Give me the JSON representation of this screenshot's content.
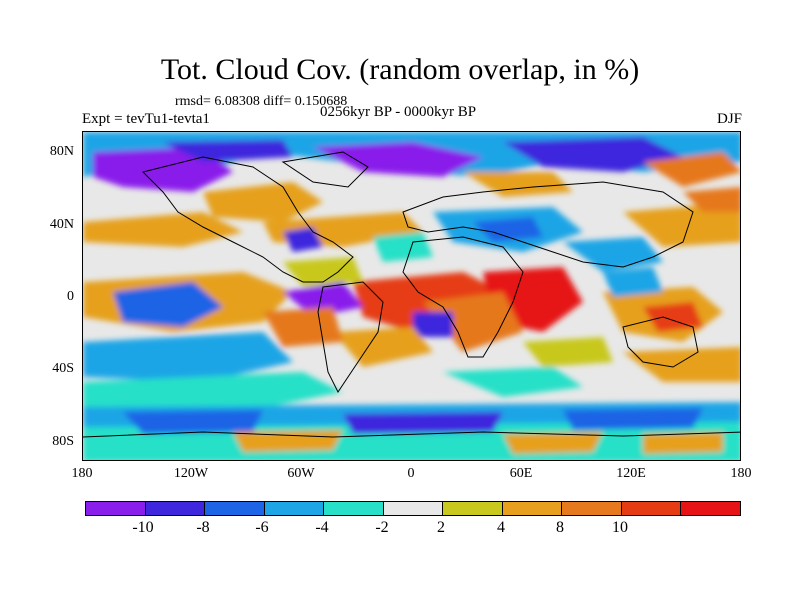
{
  "title": "Tot. Cloud Cov. (random overlap, in %)",
  "stats_line": "rmsd= 6.08308 diff= 0.150688",
  "experiment": "Expt = tevTu1-tevta1",
  "period": "0256kyr BP - 0000kyr BP",
  "season": "DJF",
  "lat_ticks": [
    "80N",
    "40N",
    "0",
    "40S",
    "80S"
  ],
  "lon_ticks": [
    "180",
    "120W",
    "60W",
    "0",
    "60E",
    "120E",
    "180"
  ],
  "colorbar": {
    "labels": [
      "-10",
      "-8",
      "-6",
      "-4",
      "-2",
      "2",
      "4",
      "8",
      "10"
    ],
    "colors": [
      "#8a1eeb",
      "#3e27dd",
      "#1e64e6",
      "#1ea5e6",
      "#28e0c8",
      "#e8e8e8",
      "#c8c81e",
      "#e6a01e",
      "#e6781e",
      "#e63c14",
      "#e61414"
    ]
  }
}
